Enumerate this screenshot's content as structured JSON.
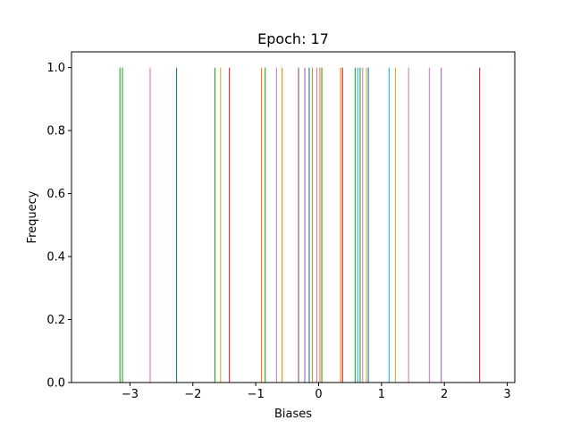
{
  "chart_data": {
    "type": "bar",
    "title": "Epoch: 17",
    "xlabel": "Biases",
    "ylabel": "Frequecy",
    "xlim": [
      -3.93,
      3.12
    ],
    "ylim": [
      0,
      1.05
    ],
    "xticks": [
      -3,
      -2,
      -1,
      0,
      1,
      2,
      3
    ],
    "xtick_labels": [
      "−3",
      "−2",
      "−1",
      "0",
      "1",
      "2",
      "3"
    ],
    "yticks": [
      0.0,
      0.2,
      0.4,
      0.6,
      0.8,
      1.0
    ],
    "ytick_labels": [
      "0.0",
      "0.2",
      "0.4",
      "0.6",
      "0.8",
      "1.0"
    ],
    "grid": false,
    "legend": "none",
    "bars": [
      {
        "x": -3.16,
        "value": 1.0,
        "color": "#2ca02c"
      },
      {
        "x": -3.12,
        "value": 1.0,
        "color": "#2ca02c"
      },
      {
        "x": -2.68,
        "value": 1.0,
        "color": "#e377c2"
      },
      {
        "x": -2.26,
        "value": 1.0,
        "color": "#1f77b4"
      },
      {
        "x": -1.65,
        "value": 1.0,
        "color": "#2ca02c"
      },
      {
        "x": -1.56,
        "value": 1.0,
        "color": "#bcbd22"
      },
      {
        "x": -1.42,
        "value": 1.0,
        "color": "#d62728"
      },
      {
        "x": -0.91,
        "value": 1.0,
        "color": "#ff7f0e"
      },
      {
        "x": -0.85,
        "value": 1.0,
        "color": "#2ca02c"
      },
      {
        "x": -0.67,
        "value": 1.0,
        "color": "#e377c2"
      },
      {
        "x": -0.58,
        "value": 1.0,
        "color": "#ff7f0e"
      },
      {
        "x": -0.32,
        "value": 1.0,
        "color": "#8c564b"
      },
      {
        "x": -0.22,
        "value": 1.0,
        "color": "#9467bd"
      },
      {
        "x": -0.15,
        "value": 1.0,
        "color": "#1f77b4"
      },
      {
        "x": -0.1,
        "value": 1.0,
        "color": "#ff7f0e"
      },
      {
        "x": -0.03,
        "value": 1.0,
        "color": "#e377c2"
      },
      {
        "x": 0.02,
        "value": 1.0,
        "color": "#ff7f0e"
      },
      {
        "x": 0.05,
        "value": 1.0,
        "color": "#2ca02c"
      },
      {
        "x": 0.35,
        "value": 1.0,
        "color": "#ff7f0e"
      },
      {
        "x": 0.38,
        "value": 1.0,
        "color": "#d62728"
      },
      {
        "x": 0.58,
        "value": 1.0,
        "color": "#2ca02c"
      },
      {
        "x": 0.62,
        "value": 1.0,
        "color": "#17becf"
      },
      {
        "x": 0.66,
        "value": 1.0,
        "color": "#2ca02c"
      },
      {
        "x": 0.7,
        "value": 1.0,
        "color": "#e377c2"
      },
      {
        "x": 0.76,
        "value": 1.0,
        "color": "#bcbd22"
      },
      {
        "x": 0.79,
        "value": 1.0,
        "color": "#1f77b4"
      },
      {
        "x": 1.12,
        "value": 1.0,
        "color": "#17becf"
      },
      {
        "x": 1.22,
        "value": 1.0,
        "color": "#bcbd22"
      },
      {
        "x": 1.43,
        "value": 1.0,
        "color": "#e377c2"
      },
      {
        "x": 1.76,
        "value": 1.0,
        "color": "#e377c2"
      },
      {
        "x": 1.95,
        "value": 1.0,
        "color": "#9467bd"
      },
      {
        "x": 2.56,
        "value": 1.0,
        "color": "#d62728"
      }
    ]
  }
}
